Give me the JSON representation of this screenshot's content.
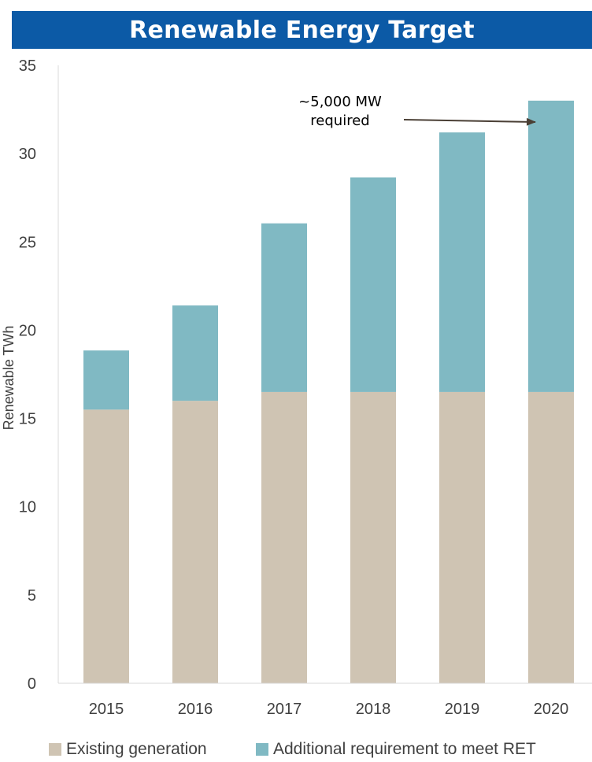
{
  "chart_data": {
    "type": "bar",
    "stacked": true,
    "title": "Renewable Energy Target",
    "xlabel": "",
    "ylabel": "Renewable TWh",
    "ylim": [
      0,
      35
    ],
    "yticks": [
      "0",
      "5",
      "10",
      "15",
      "20",
      "25",
      "30",
      "35"
    ],
    "categories": [
      "2015",
      "2016",
      "2017",
      "2018",
      "2019",
      "2020"
    ],
    "series": [
      {
        "name": "Existing generation",
        "color": "#cfc4b3",
        "values": [
          15.5,
          16.0,
          16.5,
          16.5,
          16.5,
          16.5
        ]
      },
      {
        "name": "Additional requirement to meet RET",
        "color": "#80b9c3",
        "values": [
          3.35,
          5.4,
          9.55,
          12.15,
          14.7,
          16.5
        ]
      }
    ],
    "grid": false,
    "legend_position": "bottom",
    "annotation": {
      "lines": [
        "~5,000 MW",
        "required"
      ],
      "target_category": "2020"
    }
  }
}
